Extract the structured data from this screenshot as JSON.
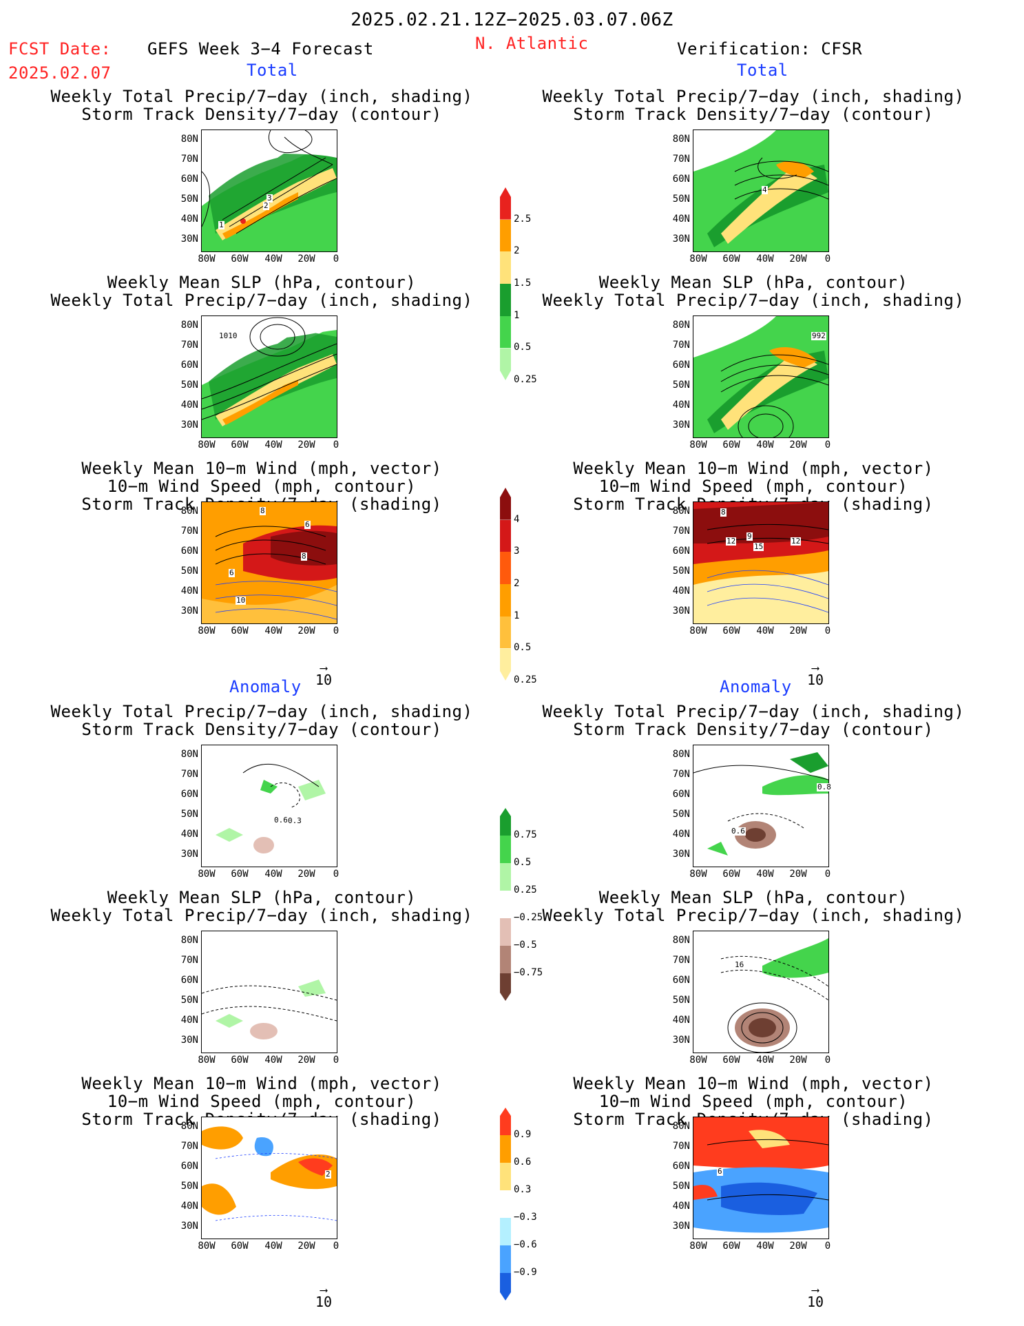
{
  "header": {
    "period": "2025.02.21.12Z−2025.03.07.06Z",
    "fcst_label": "FCST Date:",
    "fcst_date": "2025.02.07",
    "product": "GEFS Week 3−4 Forecast",
    "region": "N. Atlantic",
    "verification": "Verification: CFSR"
  },
  "sections": {
    "total": "Total",
    "anomaly": "Anomaly"
  },
  "panel_titles": {
    "precip_storm": [
      "Weekly Total Precip/7−day (inch, shading)",
      "Storm Track Density/7−day (contour)"
    ],
    "slp_precip": [
      "Weekly Mean SLP (hPa, contour)",
      "Weekly Total Precip/7−day (inch, shading)"
    ],
    "wind_storm": [
      "Weekly Mean 10−m Wind (mph, vector)",
      "10−m Wind Speed (mph, contour)",
      "Storm Track Density/7−day (shading)"
    ]
  },
  "axes": {
    "lat_ticks": [
      "80N",
      "70N",
      "60N",
      "50N",
      "40N",
      "30N"
    ],
    "lon_ticks": [
      "80W",
      "60W",
      "40W",
      "20W",
      "0"
    ]
  },
  "vector_ref": "10",
  "colorbars": {
    "precip_total": {
      "ticks": [
        "2.5",
        "2",
        "1.5",
        "1",
        "0.5",
        "0.25"
      ],
      "colors": [
        "#e8221e",
        "#ff9e00",
        "#ffe27a",
        "#1a9e2e",
        "#44d44c",
        "#b0f5a6"
      ]
    },
    "storm_total": {
      "ticks": [
        "4",
        "3",
        "2",
        "1",
        "0.5",
        "0.25"
      ],
      "colors": [
        "#8c0e0e",
        "#d41818",
        "#ff5a0c",
        "#ff9e00",
        "#ffc03c",
        "#ffee9e"
      ]
    },
    "precip_anom": {
      "ticks": [
        "0.75",
        "0.5",
        "0.25",
        "−0.25",
        "−0.5",
        "−0.75"
      ],
      "colors": [
        "#1a9e2e",
        "#44d44c",
        "#b0f5a6",
        "#ffffff",
        "#e3bfb5",
        "#b28476",
        "#6e3f32"
      ]
    },
    "storm_anom": {
      "ticks": [
        "0.9",
        "0.6",
        "0.3",
        "−0.3",
        "−0.6",
        "−0.9"
      ],
      "colors": [
        "#ff3c1e",
        "#ff9e00",
        "#ffe27a",
        "#ffffff",
        "#b4f0ff",
        "#4aa3ff",
        "#1a5fe0"
      ]
    }
  },
  "contour_labels": {
    "fc_total_precip": [
      "3",
      "2",
      "1"
    ],
    "fc_total_slp": [
      "1010"
    ],
    "fc_total_wind": [
      "8",
      "8",
      "6",
      "6",
      "10"
    ],
    "ob_total_precip": [
      "4"
    ],
    "ob_total_slp": [
      "992"
    ],
    "ob_total_wind": [
      "8",
      "12",
      "9",
      "15",
      "12"
    ],
    "fc_anom_precip": [
      "0.6",
      "0.3"
    ],
    "ob_anom_precip": [
      "0.6",
      "0.8"
    ],
    "ob_anom_slp": [
      "16"
    ],
    "fc_anom_wind": [
      "2"
    ],
    "ob_anom_wind": [
      "6"
    ]
  }
}
